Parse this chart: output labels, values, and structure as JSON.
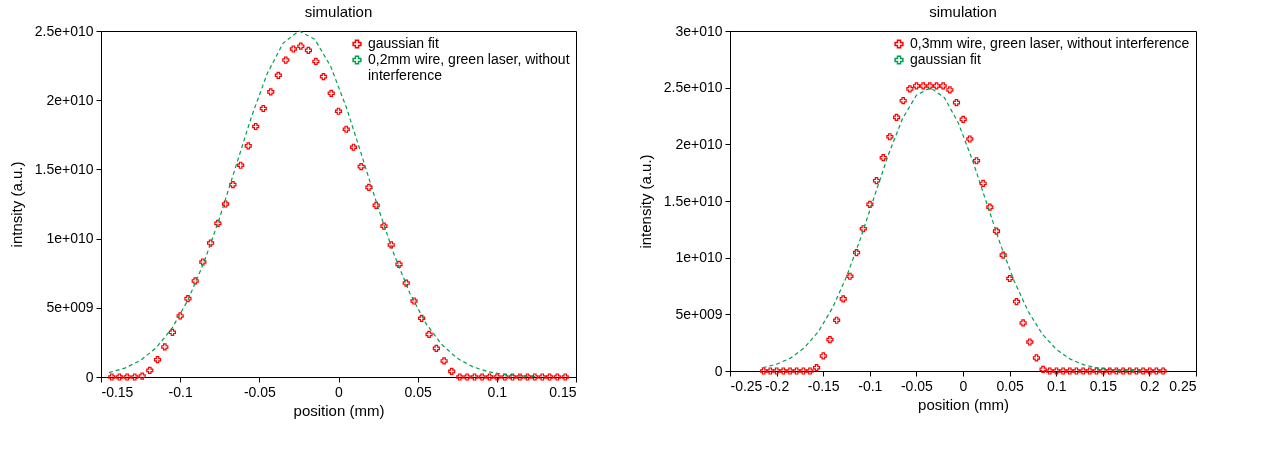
{
  "chart_data": [
    {
      "type": "scatter",
      "title": "simulation",
      "xlabel": "position (mm)",
      "ylabel": "intnsity (a.u.)",
      "xlim": [
        -0.15,
        0.15
      ],
      "xticks": [
        -0.15,
        -0.1,
        -0.05,
        0,
        0.05,
        0.1,
        0.15
      ],
      "ylim": [
        0,
        25000000000.0
      ],
      "yticks": [
        0,
        {
          "value": 5000000000.0,
          "label": "5e+009"
        },
        {
          "value": 10000000000.0,
          "label": "1e+010"
        },
        {
          "value": 15000000000.0,
          "label": "1.5e+010"
        },
        {
          "value": 20000000000.0,
          "label": "2e+010"
        },
        {
          "value": 25000000000.0,
          "label": "2.5e+010"
        }
      ],
      "legend": "top right",
      "series": [
        {
          "name": "gaussian fit",
          "marker": "cross",
          "color": "#ff0000",
          "x": [
            -0.1432,
            -0.1384,
            -0.1335,
            -0.1287,
            -0.124,
            -0.1192,
            -0.1143,
            -0.1097,
            -0.1049,
            -0.1,
            -0.0951,
            -0.0905,
            -0.0857,
            -0.0808,
            -0.0762,
            -0.0713,
            -0.0667,
            -0.0618,
            -0.057,
            -0.0523,
            -0.0475,
            -0.0428,
            -0.038,
            -0.0333,
            -0.0285,
            -0.0238,
            -0.019,
            -0.0143,
            -0.0095,
            -0.0046,
            0,
            0.0049,
            0.0095,
            0.0143,
            0.0192,
            0.0238,
            0.0287,
            0.0333,
            0.0382,
            0.0428,
            0.0477,
            0.0525,
            0.0572,
            0.0618,
            0.0667,
            0.0715,
            0.0766,
            0.0812,
            0.0859,
            0.0907,
            0.0954,
            0.1002,
            0.1051,
            0.1099,
            0.1146,
            0.1194,
            0.124,
            0.1287,
            0.1333,
            0.1382,
            0.1432
          ],
          "values": [
            0,
            0,
            0,
            0,
            70000000.0,
            480000000.0,
            1250000000.0,
            2170000000.0,
            3230000000.0,
            4410000000.0,
            5660000000.0,
            6940000000.0,
            8310000000.0,
            9680000000.0,
            11100000000.0,
            12500000000.0,
            13900000000.0,
            15300000000.0,
            16700000000.0,
            18100000000.0,
            19400000000.0,
            20600000000.0,
            21800000000.0,
            22900000000.0,
            23700000000.0,
            23900000000.0,
            23600000000.0,
            22800000000.0,
            21700000000.0,
            20500000000.0,
            19200000000.0,
            17900000000.0,
            16600000000.0,
            15200000000.0,
            13700000000.0,
            12400000000.0,
            10900000000.0,
            9540000000.0,
            8140000000.0,
            6790000000.0,
            5490000000.0,
            4240000000.0,
            3080000000.0,
            2070000000.0,
            1160000000.0,
            410000000.0,
            0,
            0,
            0,
            0,
            0,
            0,
            0,
            0,
            0,
            0,
            0,
            0,
            0,
            0,
            0
          ]
        },
        {
          "name": "0,2mm wire, green laser, without interference",
          "type": "line",
          "line_style": "dashed",
          "color": "#00a050",
          "x": [
            -0.145,
            -0.135,
            -0.125,
            -0.115,
            -0.105,
            -0.095,
            -0.085,
            -0.075,
            -0.065,
            -0.055,
            -0.045,
            -0.035,
            -0.025,
            -0.015,
            -0.005,
            0.005,
            0.015,
            0.025,
            0.035,
            0.045,
            0.055,
            0.065,
            0.075,
            0.085,
            0.095,
            0.105,
            0.115,
            0.125
          ],
          "values": [
            320000000.0,
            640000000.0,
            1200000000.0,
            2130000000.0,
            3550000000.0,
            5580000000.0,
            8270000000.0,
            11530000000.0,
            15160000000.0,
            18790000000.0,
            21930000000.0,
            24120000000.0,
            25000000000.0,
            24410000000.0,
            22460000000.0,
            19470000000.0,
            15900000000.0,
            12240000000.0,
            8880000000.0,
            6070000000.0,
            3910000000.0,
            2370000000.0,
            1350000000.0,
            730000000.0,
            370000000.0,
            180000000.0,
            80000000.0,
            30000000.0
          ]
        }
      ]
    },
    {
      "type": "scatter",
      "title": "simulation",
      "xlabel": "position (mm)",
      "ylabel": "intensity (a.u.)",
      "xlim": [
        -0.25,
        0.25
      ],
      "xticks": [
        -0.25,
        -0.2,
        -0.15,
        -0.1,
        -0.05,
        0,
        0.05,
        0.1,
        0.15,
        0.2,
        0.25
      ],
      "ylim": [
        0,
        30000000000.0
      ],
      "yticks": [
        0,
        {
          "value": 5000000000.0,
          "label": "5e+009"
        },
        {
          "value": 10000000000.0,
          "label": "1e+010"
        },
        {
          "value": 15000000000.0,
          "label": "1.5e+010"
        },
        {
          "value": 20000000000.0,
          "label": "2e+010"
        },
        {
          "value": 25000000000.0,
          "label": "2.5e+010"
        },
        {
          "value": 30000000000.0,
          "label": "3e+010"
        }
      ],
      "legend": "top right",
      "series": [
        {
          "name": "0,3mm wire, green laser, without interference",
          "marker": "cross",
          "color": "#ff0000",
          "x": [
            -0.2139,
            -0.2068,
            -0.1999,
            -0.1928,
            -0.1856,
            -0.1785,
            -0.1713,
            -0.1642,
            -0.1571,
            -0.1499,
            -0.1428,
            -0.1356,
            -0.1285,
            -0.1213,
            -0.1142,
            -0.107,
            -0.0999,
            -0.0928,
            -0.0856,
            -0.0785,
            -0.0713,
            -0.0642,
            -0.057,
            -0.0499,
            -0.0427,
            -0.0356,
            -0.0284,
            -0.0213,
            -0.0141,
            -0.007,
            0.0002,
            0.0073,
            0.0145,
            0.0216,
            0.0288,
            0.0359,
            0.0431,
            0.0502,
            0.0574,
            0.0645,
            0.0717,
            0.0788,
            0.0859,
            0.0931,
            0.1003,
            0.1074,
            0.1146,
            0.1217,
            0.1289,
            0.136,
            0.1432,
            0.1503,
            0.1575,
            0.1646,
            0.1718,
            0.1789,
            0.1861,
            0.1932,
            0.2004,
            0.2075,
            0.2147
          ],
          "values": [
            0,
            0,
            0,
            0,
            0,
            0,
            0,
            0,
            290000000.0,
            1330000000.0,
            2770000000.0,
            4480000000.0,
            6360000000.0,
            8360000000.0,
            10450000000.0,
            12550000000.0,
            14700000000.0,
            16790000000.0,
            18820000000.0,
            20670000000.0,
            22380000000.0,
            23850000000.0,
            24890000000.0,
            25150000000.0,
            25150000000.0,
            25150000000.0,
            25150000000.0,
            25150000000.0,
            24800000000.0,
            23680000000.0,
            22200000000.0,
            20470000000.0,
            18550000000.0,
            16550000000.0,
            14460000000.0,
            12340000000.0,
            10220000000.0,
            8160000000.0,
            6130000000.0,
            4240000000.0,
            2560000000.0,
            1150000000.0,
            150000000.0,
            0,
            0,
            0,
            0,
            0,
            0,
            0,
            0,
            0,
            0,
            0,
            0,
            0,
            0,
            0,
            0,
            0,
            0
          ]
        },
        {
          "name": "gaussian fit",
          "type": "line",
          "line_style": "dashed",
          "color": "#00a050",
          "x": [
            -0.215,
            -0.2,
            -0.185,
            -0.17,
            -0.155,
            -0.14,
            -0.125,
            -0.11,
            -0.095,
            -0.08,
            -0.065,
            -0.05,
            -0.035,
            -0.02,
            -0.005,
            0.01,
            0.025,
            0.04,
            0.055,
            0.07,
            0.085,
            0.1,
            0.115,
            0.13,
            0.145,
            0.16,
            0.175,
            0.19
          ],
          "values": [
            290000000.0,
            600000000.0,
            1140000000.0,
            2060000000.0,
            3500000000.0,
            5570000000.0,
            8320000000.0,
            11690000000.0,
            15420000000.0,
            19100000000.0,
            22250000000.0,
            24330000000.0,
            25000000000.0,
            24130000000.0,
            21880000000.0,
            18640000000.0,
            14910000000.0,
            11210000000.0,
            7920000000.0,
            5250000000.0,
            3270000000.0,
            1920000000.0,
            1050000000.0,
            540000000.0,
            260000000.0,
            120000000.0,
            50000000.0,
            20000000.0
          ]
        }
      ]
    }
  ]
}
